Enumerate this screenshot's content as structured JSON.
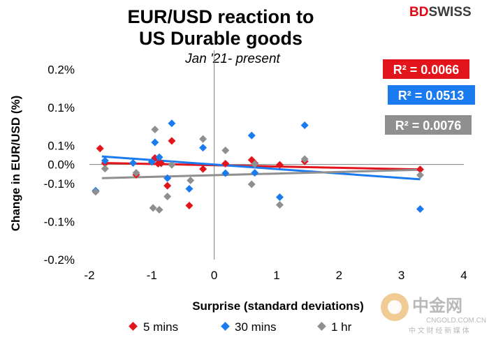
{
  "brand": {
    "bd": "BD",
    "swiss": "SWISS"
  },
  "watermark": {
    "main": "中金网",
    "url": "CNGOLD.COM.CN",
    "sub": "中 文 财 经 新 媒 体"
  },
  "chart_data": {
    "type": "scatter",
    "title": [
      "EUR/USD reaction to",
      "US Durable goods"
    ],
    "subtitle": "Jan '21- present",
    "xlabel": "Surprise (standard deviations)",
    "ylabel": "Change in EUR/USD  (%)",
    "xlim": [
      -2,
      4
    ],
    "ylim": [
      -0.25,
      0.3
    ],
    "x_ticks": [
      -2,
      -1,
      0,
      1,
      2,
      3,
      4
    ],
    "x_tick_labels": [
      "-2",
      "-1",
      "0",
      "1",
      "2",
      "3",
      "4"
    ],
    "y_ticks": [
      0.3,
      0.25,
      0.2,
      0.15,
      0.1,
      0.05,
      0.0,
      -0.05,
      -0.1,
      -0.15,
      -0.2,
      -0.25
    ],
    "y_tick_labels": [
      "",
      "0.2%",
      "",
      "0.1%",
      "",
      "0.1%",
      "0.0%",
      "-0.1%",
      "",
      "-0.1%",
      "",
      "-0.2%"
    ],
    "series": [
      {
        "name": "5 mins",
        "color": "#e3151c",
        "trendline": [
          [
            -1.8,
            0.004
          ],
          [
            3.3,
            -0.013
          ]
        ],
        "r2_label": "R² = 0.0066",
        "points": [
          [
            -1.83,
            0.042
          ],
          [
            -1.75,
            0.003
          ],
          [
            -1.25,
            -0.027
          ],
          [
            -0.95,
            0.017
          ],
          [
            -0.9,
            0.002
          ],
          [
            -0.85,
            0.003
          ],
          [
            -0.75,
            -0.056
          ],
          [
            -0.68,
            0.062
          ],
          [
            -0.4,
            -0.108
          ],
          [
            -0.18,
            -0.012
          ],
          [
            0.18,
            0.002
          ],
          [
            0.6,
            0.012
          ],
          [
            0.65,
            0.003
          ],
          [
            1.05,
            -0.001
          ],
          [
            1.45,
            0.008
          ],
          [
            3.3,
            -0.013
          ]
        ]
      },
      {
        "name": "30 mins",
        "color": "#1a7bf0",
        "trendline": [
          [
            -1.8,
            0.021
          ],
          [
            3.3,
            -0.039
          ]
        ],
        "r2_label": "R² = 0.0513",
        "points": [
          [
            -1.9,
            -0.069
          ],
          [
            -1.75,
            0.01
          ],
          [
            -1.3,
            0.004
          ],
          [
            -1.0,
            0.007
          ],
          [
            -0.95,
            0.058
          ],
          [
            -0.88,
            0.019
          ],
          [
            -0.75,
            -0.036
          ],
          [
            -0.68,
            0.108
          ],
          [
            -0.4,
            -0.064
          ],
          [
            -0.18,
            0.044
          ],
          [
            0.18,
            -0.023
          ],
          [
            0.6,
            0.076
          ],
          [
            0.65,
            -0.022
          ],
          [
            1.05,
            -0.086
          ],
          [
            1.45,
            0.103
          ],
          [
            3.3,
            -0.117
          ]
        ]
      },
      {
        "name": "1 hr",
        "color": "#8f8f8f",
        "trendline": [
          [
            -1.8,
            -0.036
          ],
          [
            3.3,
            -0.014
          ]
        ],
        "r2_label": "R² = 0.0076",
        "points": [
          [
            -1.9,
            -0.072
          ],
          [
            -1.75,
            -0.011
          ],
          [
            -1.25,
            -0.022
          ],
          [
            -0.95,
            0.092
          ],
          [
            -0.98,
            -0.114
          ],
          [
            -0.88,
            -0.119
          ],
          [
            -0.75,
            -0.084
          ],
          [
            -0.68,
            -0.001
          ],
          [
            -0.38,
            -0.042
          ],
          [
            -0.18,
            0.067
          ],
          [
            0.18,
            0.037
          ],
          [
            0.6,
            -0.052
          ],
          [
            0.65,
            0.001
          ],
          [
            1.05,
            -0.106
          ],
          [
            1.45,
            0.014
          ],
          [
            3.3,
            -0.028
          ]
        ]
      }
    ],
    "legend": [
      "5 mins",
      "30 mins",
      "1 hr"
    ]
  }
}
